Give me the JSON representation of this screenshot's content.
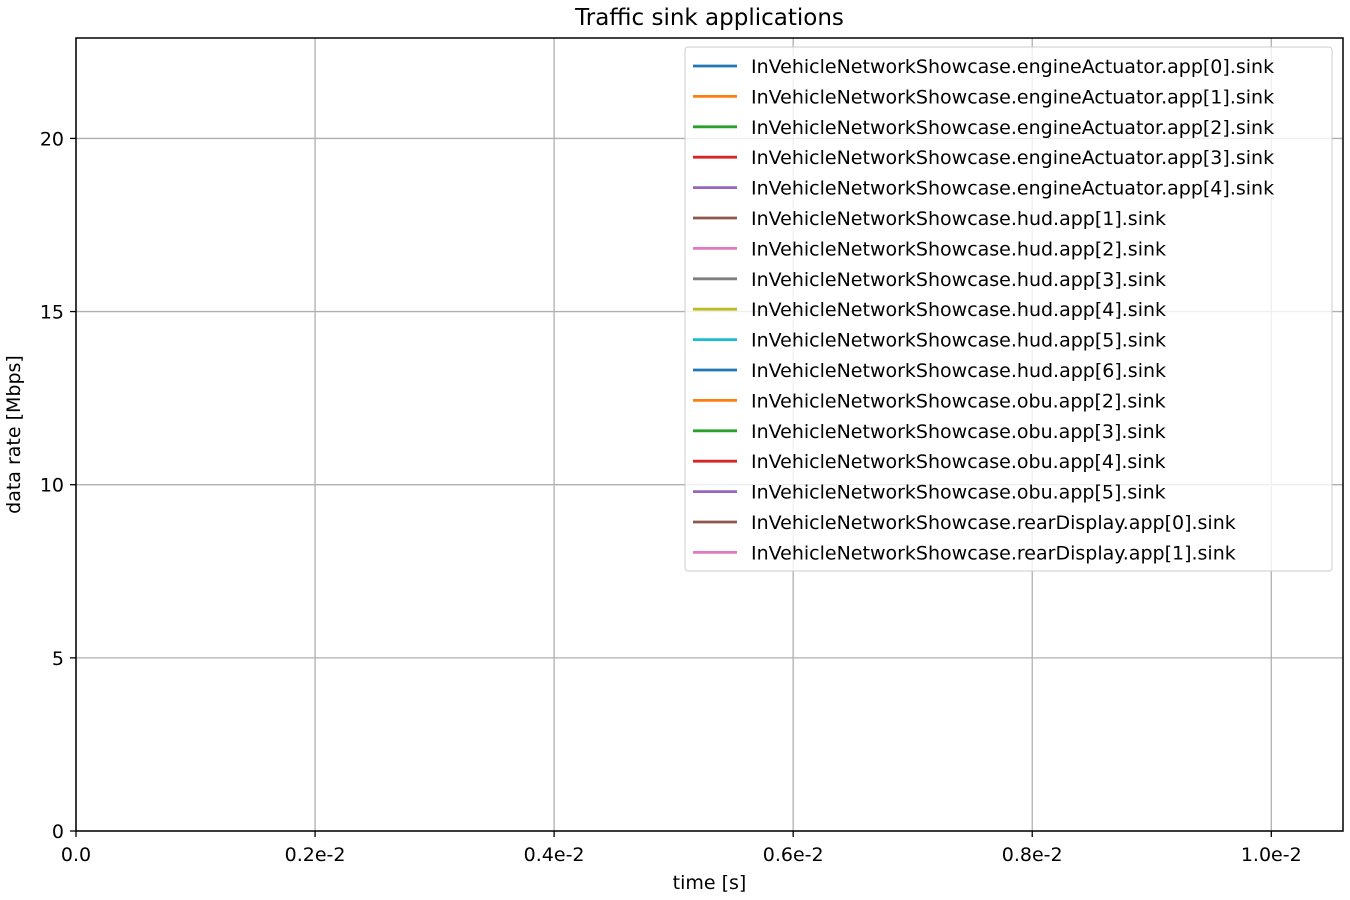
{
  "chart_data": {
    "type": "line",
    "title": "Traffic sink applications",
    "xlabel": "time [s]",
    "ylabel": "data rate [Mbps]",
    "xlim": [
      0,
      0.0106
    ],
    "ylim": [
      0,
      22.9
    ],
    "x_ticks": [
      {
        "value": 0,
        "label": "0.0"
      },
      {
        "value": 0.002,
        "label": "0.2e-2"
      },
      {
        "value": 0.004,
        "label": "0.4e-2"
      },
      {
        "value": 0.006,
        "label": "0.6e-2"
      },
      {
        "value": 0.008,
        "label": "0.8e-2"
      },
      {
        "value": 0.01,
        "label": "1.0e-2"
      }
    ],
    "y_ticks": [
      {
        "value": 0,
        "label": "0"
      },
      {
        "value": 5,
        "label": "5"
      },
      {
        "value": 10,
        "label": "10"
      },
      {
        "value": 15,
        "label": "15"
      },
      {
        "value": 20,
        "label": "20"
      }
    ],
    "grid": true,
    "legend_position": "top-right",
    "series": [
      {
        "name": "InVehicleNetworkShowcase.engineActuator.app[0].sink",
        "color": "#1f77b4",
        "x": [],
        "y": []
      },
      {
        "name": "InVehicleNetworkShowcase.engineActuator.app[1].sink",
        "color": "#ff7f0e",
        "x": [],
        "y": []
      },
      {
        "name": "InVehicleNetworkShowcase.engineActuator.app[2].sink",
        "color": "#2ca02c",
        "x": [],
        "y": []
      },
      {
        "name": "InVehicleNetworkShowcase.engineActuator.app[3].sink",
        "color": "#d62728",
        "x": [],
        "y": []
      },
      {
        "name": "InVehicleNetworkShowcase.engineActuator.app[4].sink",
        "color": "#9467bd",
        "x": [],
        "y": []
      },
      {
        "name": "InVehicleNetworkShowcase.hud.app[1].sink",
        "color": "#8c564b",
        "x": [],
        "y": []
      },
      {
        "name": "InVehicleNetworkShowcase.hud.app[2].sink",
        "color": "#e377c2",
        "x": [],
        "y": []
      },
      {
        "name": "InVehicleNetworkShowcase.hud.app[3].sink",
        "color": "#7f7f7f",
        "x": [],
        "y": []
      },
      {
        "name": "InVehicleNetworkShowcase.hud.app[4].sink",
        "color": "#bcbd22",
        "x": [],
        "y": []
      },
      {
        "name": "InVehicleNetworkShowcase.hud.app[5].sink",
        "color": "#17becf",
        "x": [],
        "y": []
      },
      {
        "name": "InVehicleNetworkShowcase.hud.app[6].sink",
        "color": "#1f77b4",
        "x": [],
        "y": []
      },
      {
        "name": "InVehicleNetworkShowcase.obu.app[2].sink",
        "color": "#ff7f0e",
        "x": [],
        "y": []
      },
      {
        "name": "InVehicleNetworkShowcase.obu.app[3].sink",
        "color": "#2ca02c",
        "x": [],
        "y": []
      },
      {
        "name": "InVehicleNetworkShowcase.obu.app[4].sink",
        "color": "#d62728",
        "x": [],
        "y": []
      },
      {
        "name": "InVehicleNetworkShowcase.obu.app[5].sink",
        "color": "#9467bd",
        "x": [],
        "y": []
      },
      {
        "name": "InVehicleNetworkShowcase.rearDisplay.app[0].sink",
        "color": "#8c564b",
        "x": [],
        "y": []
      },
      {
        "name": "InVehicleNetworkShowcase.rearDisplay.app[1].sink",
        "color": "#e377c2",
        "x": [],
        "y": []
      }
    ]
  }
}
